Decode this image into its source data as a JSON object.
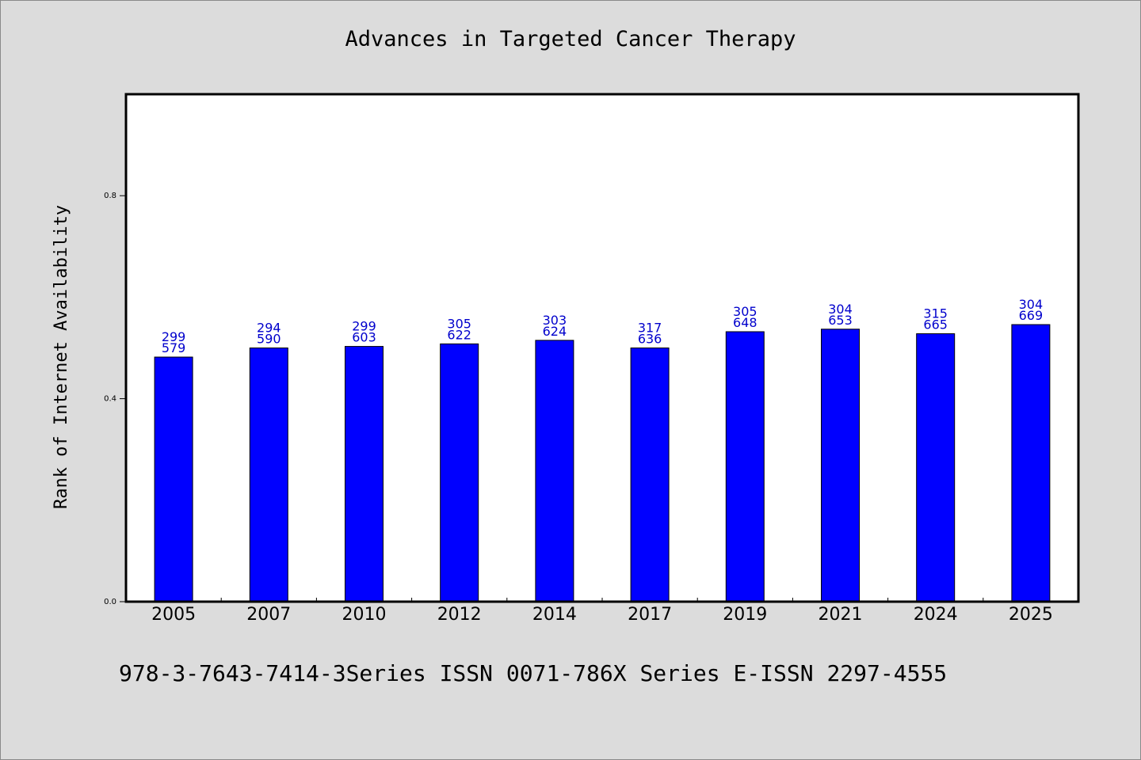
{
  "chart_data": {
    "type": "bar",
    "title": "Advances in Targeted Cancer Therapy",
    "xlabel": "",
    "ylabel": "Rank of Internet Availability",
    "footer": "978-3-7643-7414-3Series ISSN 0071-786X Series E-ISSN 2297-4555",
    "categories": [
      "2005",
      "2007",
      "2010",
      "2012",
      "2014",
      "2017",
      "2019",
      "2021",
      "2024",
      "2025"
    ],
    "values": [
      0.482,
      0.5,
      0.503,
      0.508,
      0.515,
      0.5,
      0.532,
      0.537,
      0.528,
      0.546
    ],
    "data_labels": [
      [
        "299",
        "579"
      ],
      [
        "294",
        "590"
      ],
      [
        "299",
        "603"
      ],
      [
        "305",
        "622"
      ],
      [
        "303",
        "624"
      ],
      [
        "317",
        "636"
      ],
      [
        "305",
        "648"
      ],
      [
        "304",
        "653"
      ],
      [
        "315",
        "665"
      ],
      [
        "304",
        "669"
      ]
    ],
    "ylim": [
      0,
      1.0
    ],
    "yticks": [
      0.0,
      0.4,
      0.8
    ],
    "ytick_labels": [
      "0.0",
      "0.4",
      "0.8"
    ],
    "grid": false,
    "legend": "none",
    "colors": {
      "bar": "#0000ff",
      "bar_edge": "#000000",
      "data_label": "#0000cc",
      "plot_background": "#ffffff",
      "page_background": "#dcdcdc"
    }
  }
}
